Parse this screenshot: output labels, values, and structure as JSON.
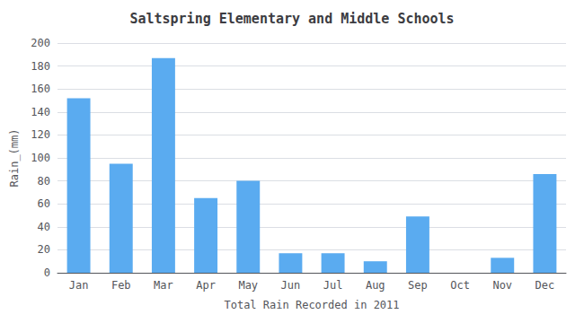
{
  "chart_data": {
    "type": "bar",
    "title": "Saltspring Elementary and Middle Schools",
    "xlabel": "Total Rain Recorded in 2011",
    "ylabel": "Rain_(mm)",
    "categories": [
      "Jan",
      "Feb",
      "Mar",
      "Apr",
      "May",
      "Jun",
      "Jul",
      "Aug",
      "Sep",
      "Oct",
      "Nov",
      "Dec"
    ],
    "values": [
      152,
      95,
      187,
      65,
      80,
      17,
      17,
      10,
      49,
      0,
      13,
      86
    ],
    "color": "#5aabf0",
    "ylim": [
      0,
      200
    ],
    "yticks": [
      0,
      20,
      40,
      60,
      80,
      100,
      120,
      140,
      160,
      180,
      200
    ],
    "grid": true
  }
}
